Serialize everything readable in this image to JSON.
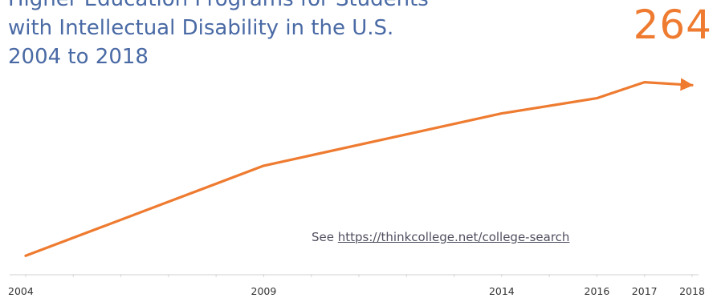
{
  "chart_data": {
    "type": "line",
    "title_lines": [
      "Higher Education Programs for Students",
      "with Intellectual Disability in the U.S.",
      "2004 to 2018"
    ],
    "highlight_value": "264",
    "source_prefix": "See ",
    "source_link": "https://thinkcollege.net/college-search",
    "x_tick_labels": [
      "2004",
      "2009",
      "2014",
      "2016",
      "2017",
      "2018"
    ],
    "x_ticks": [
      2004,
      2009,
      2014,
      2016,
      2017,
      2018
    ],
    "x": [
      2004,
      2009,
      2014,
      2016,
      2017,
      2018
    ],
    "values": [
      25,
      149,
      221,
      242,
      264,
      260
    ],
    "xlim": [
      2004,
      2018
    ],
    "ylim": [
      0,
      300
    ],
    "grid": false,
    "arrow_at_end": true,
    "line_color": "#ee7b30",
    "title_color": "#4a6aa5",
    "xlabel": "",
    "ylabel": ""
  }
}
